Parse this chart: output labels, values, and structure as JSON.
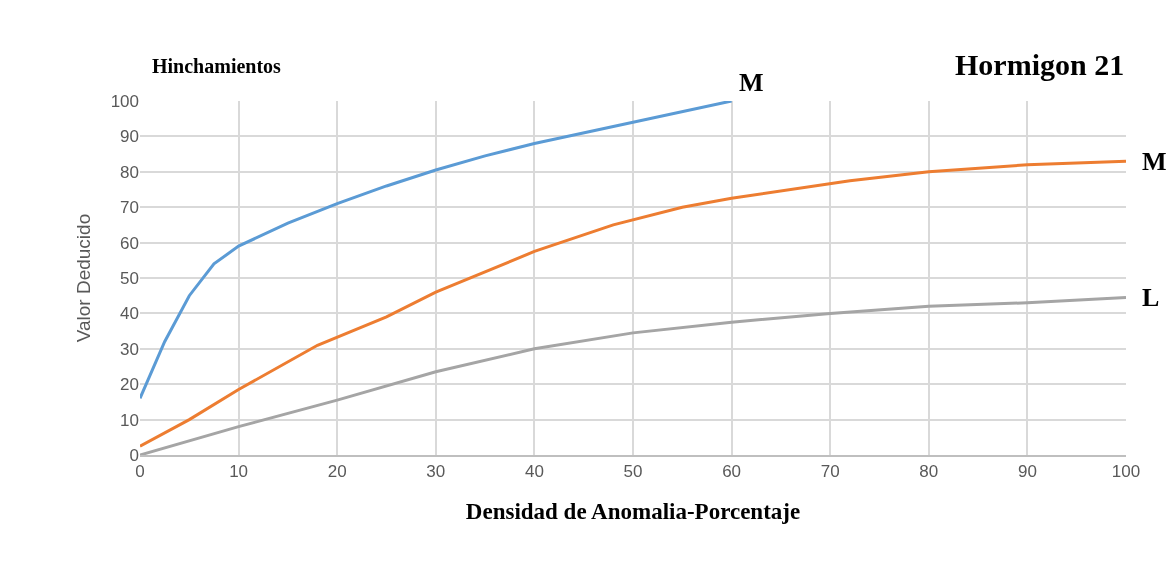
{
  "chart_data": {
    "type": "line",
    "title": "Hormigon 21",
    "subtitle": "Hinchamientos",
    "xlabel": "Densidad de Anomalia-Porcentaje",
    "ylabel": "Valor Deducido",
    "xlim": [
      0,
      100
    ],
    "xticks": [
      0,
      10,
      20,
      30,
      40,
      50,
      60,
      70,
      80,
      90,
      100
    ],
    "ylim": [
      0,
      100
    ],
    "yticks": [
      0,
      10,
      20,
      30,
      40,
      50,
      60,
      70,
      80,
      90,
      100
    ],
    "grid": true,
    "legend": false,
    "marker": "none",
    "line_style": "solid",
    "series": [
      {
        "name": "M",
        "color": "#5b9bd5",
        "x": [
          0,
          2.5,
          5,
          7.5,
          10,
          15,
          20,
          25,
          30,
          35,
          40,
          50,
          60
        ],
        "values": [
          16,
          32,
          45,
          54,
          59,
          65.5,
          71,
          76,
          80.5,
          84.5,
          88,
          94,
          100
        ]
      },
      {
        "name": "M",
        "color": "#ed7d31",
        "x": [
          0,
          5,
          10,
          18,
          25,
          30,
          40,
          48,
          55,
          60,
          72,
          80,
          90,
          100
        ],
        "values": [
          2.5,
          10,
          18.5,
          31,
          39,
          46,
          57.5,
          65,
          70,
          72.5,
          77.5,
          80,
          82,
          83
        ]
      },
      {
        "name": "L",
        "color": "#a5a5a5",
        "x": [
          0,
          10,
          20,
          30,
          40,
          50,
          60,
          70,
          80,
          90,
          100
        ],
        "values": [
          0,
          8,
          15.5,
          23.5,
          30,
          34.5,
          37.5,
          40,
          42,
          43,
          44.5
        ]
      }
    ]
  }
}
